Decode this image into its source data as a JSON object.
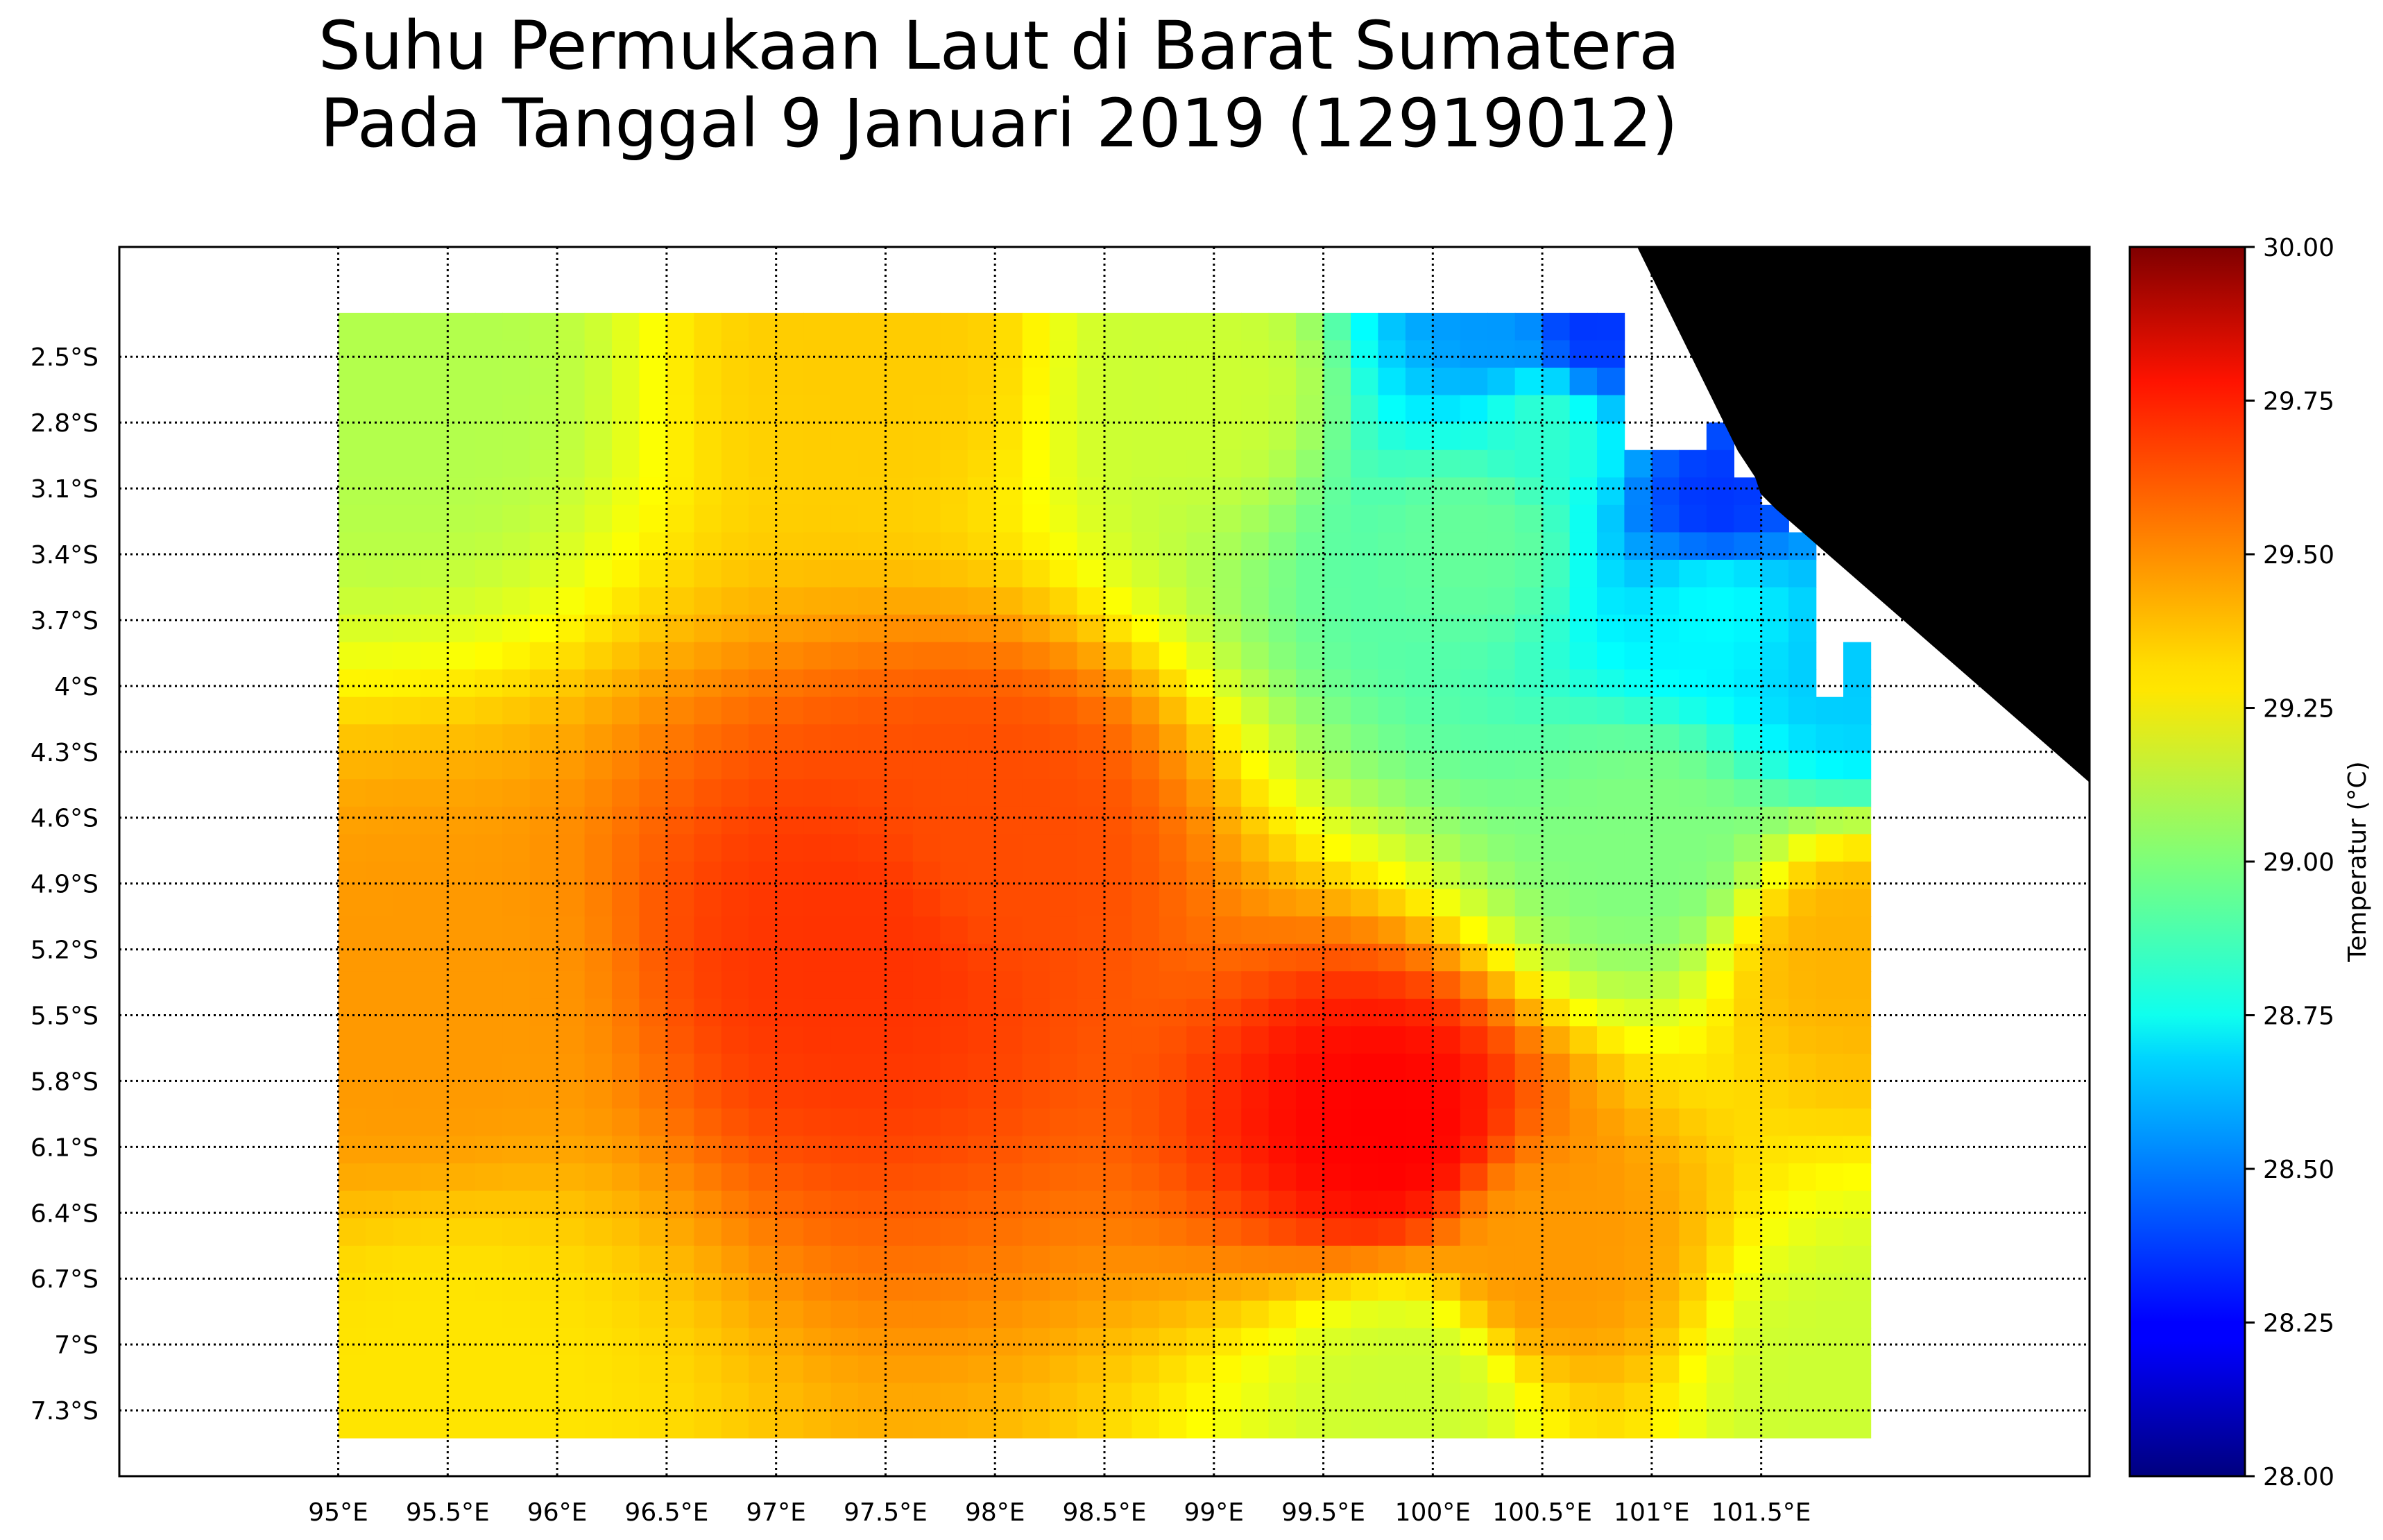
{
  "title": {
    "line1": "Suhu Permukaan Laut di Barat Sumatera",
    "line2": "Pada Tanggal 9 Januari 2019 (12919012)"
  },
  "map": {
    "lon_range": [
      94.0,
      103.0
    ],
    "lat_range": [
      -2.0,
      -7.6
    ],
    "data_extent": {
      "lon": [
        95.0,
        102.0
      ],
      "lat": [
        -2.3,
        -7.3
      ]
    },
    "x_ticks": [
      "95°E",
      "95.5°E",
      "96°E",
      "96.5°E",
      "97°E",
      "97.5°E",
      "98°E",
      "98.5°E",
      "99°E",
      "99.5°E",
      "100°E",
      "100.5°E",
      "101°E",
      "101.5°E"
    ],
    "x_tick_values": [
      95,
      95.5,
      96,
      96.5,
      97,
      97.5,
      98,
      98.5,
      99,
      99.5,
      100,
      100.5,
      101,
      101.5
    ],
    "y_ticks": [
      "2.5°S",
      "2.8°S",
      "3.1°S",
      "3.4°S",
      "3.7°S",
      "4°S",
      "4.3°S",
      "4.6°S",
      "4.9°S",
      "5.2°S",
      "5.5°S",
      "5.8°S",
      "6.1°S",
      "6.4°S",
      "6.7°S",
      "7°S",
      "7.3°S"
    ],
    "y_tick_values": [
      -2.5,
      -2.8,
      -3.1,
      -3.4,
      -3.7,
      -4.0,
      -4.3,
      -4.6,
      -4.9,
      -5.2,
      -5.5,
      -5.8,
      -6.1,
      -6.4,
      -6.7,
      -7.0,
      -7.3
    ],
    "land_color": "#000000",
    "colormap": "jet"
  },
  "colorbar": {
    "label": "Temperatur (°C)",
    "min": 28.0,
    "max": 30.0,
    "ticks": [
      "30.00",
      "29.75",
      "29.50",
      "29.25",
      "29.00",
      "28.75",
      "28.50",
      "28.25",
      "28.00"
    ],
    "tick_values": [
      30.0,
      29.75,
      29.5,
      29.25,
      29.0,
      28.75,
      28.5,
      28.25,
      28.0
    ]
  },
  "chart_data": {
    "type": "heatmap",
    "title": "Suhu Permukaan Laut di Barat Sumatera Pada Tanggal 9 Januari 2019 (12919012)",
    "variable": "Temperatur (°C)",
    "value_range": [
      28.0,
      30.0
    ],
    "features": [
      {
        "lon": 95.3,
        "lat": -2.6,
        "value": 29.1
      },
      {
        "lon": 97.5,
        "lat": -2.5,
        "value": 29.35
      },
      {
        "lon": 99.0,
        "lat": -2.6,
        "value": 29.15
      },
      {
        "lon": 100.3,
        "lat": -2.4,
        "value": 28.55
      },
      {
        "lon": 100.7,
        "lat": -2.4,
        "value": 28.35
      },
      {
        "lon": 100.5,
        "lat": -2.8,
        "value": 28.85
      },
      {
        "lon": 101.3,
        "lat": -3.2,
        "value": 28.35
      },
      {
        "lon": 101.3,
        "lat": -3.6,
        "value": 28.75
      },
      {
        "lon": 101.9,
        "lat": -3.9,
        "value": 28.65
      },
      {
        "lon": 100.2,
        "lat": -3.3,
        "value": 28.95
      },
      {
        "lon": 97.4,
        "lat": -5.2,
        "value": 29.65
      },
      {
        "lon": 98.0,
        "lat": -4.7,
        "value": 29.6
      },
      {
        "lon": 99.8,
        "lat": -6.05,
        "value": 29.75
      },
      {
        "lon": 95.3,
        "lat": -5.5,
        "value": 29.45
      },
      {
        "lon": 95.5,
        "lat": -7.2,
        "value": 29.3
      },
      {
        "lon": 100.5,
        "lat": -6.6,
        "value": 29.45
      },
      {
        "lon": 101.0,
        "lat": -4.7,
        "value": 29.0
      },
      {
        "lon": 101.9,
        "lat": -5.2,
        "value": 29.4
      },
      {
        "lon": 101.9,
        "lat": -7.2,
        "value": 29.15
      },
      {
        "lon": 99.9,
        "lat": -7.2,
        "value": 29.15
      }
    ]
  }
}
